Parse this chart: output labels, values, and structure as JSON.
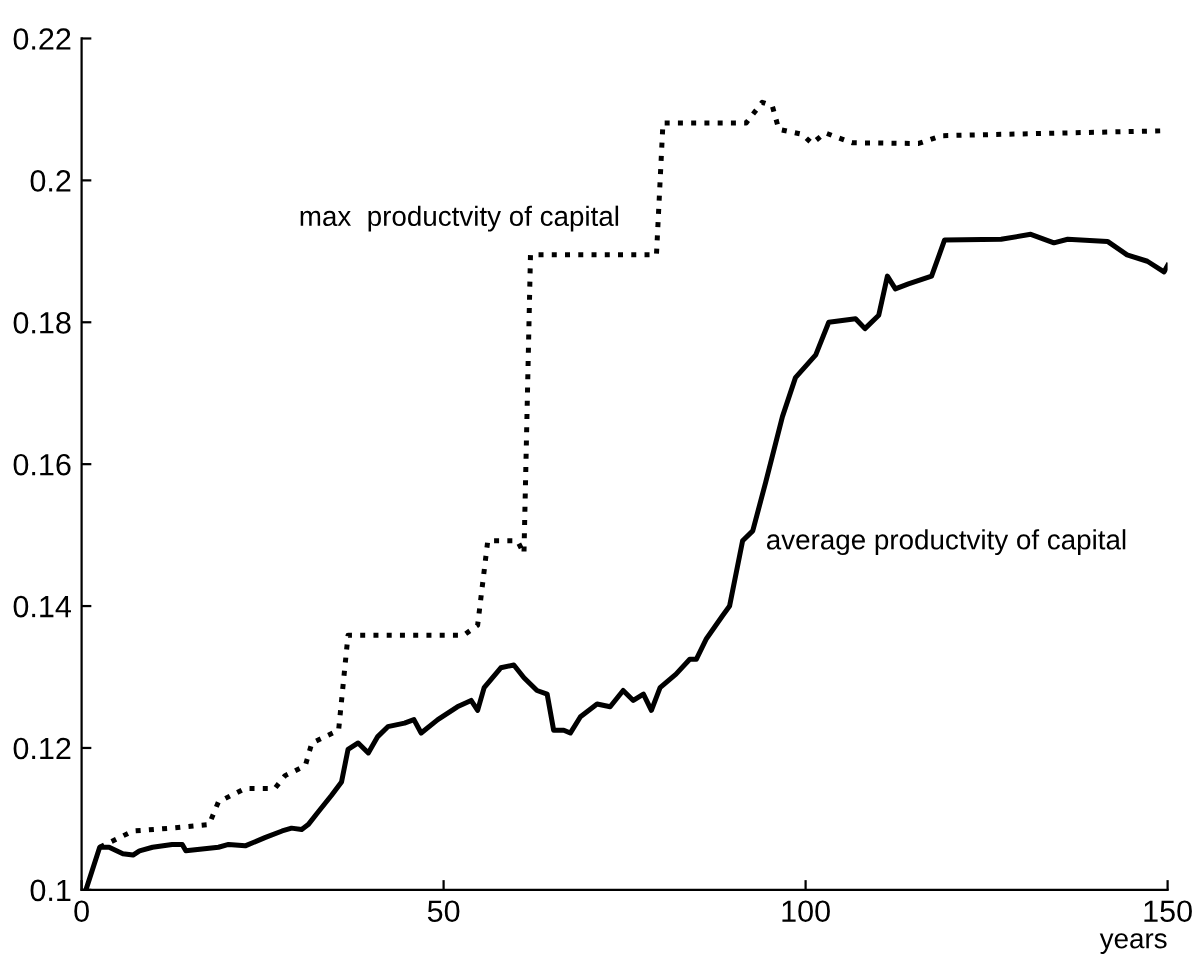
{
  "chart_data": {
    "type": "line",
    "xlabel": "years",
    "xlim": [
      0,
      150
    ],
    "xticks": [
      0,
      50,
      100,
      150
    ],
    "ylim": [
      0.1,
      0.22
    ],
    "yticks": [
      0.1,
      0.12,
      0.14,
      0.16,
      0.18,
      0.2,
      0.22
    ],
    "grid": false,
    "legend": false,
    "marker": "none",
    "annotations": [
      "max  productvity of capital",
      "average productvity of capital"
    ],
    "series": [
      {
        "color": "#000000",
        "line_style": "dotted",
        "x": [
          2.5,
          7.1,
          12.5,
          17.6,
          18.9,
          22.6,
          26.7,
          28.1,
          30.9,
          31.8,
          35.5,
          36.8,
          52.8,
          54.7,
          56.1,
          60.2,
          61.1,
          62,
          79.4,
          80.3,
          91.8,
          94,
          95.4,
          96.3,
          99.5,
          100.9,
          102.7,
          106.4,
          115.6,
          118.8,
          150
        ],
        "values": [
          0.106,
          0.1083,
          0.1087,
          0.1092,
          0.1124,
          0.1143,
          0.1143,
          0.1161,
          0.1175,
          0.1207,
          0.1225,
          0.1359,
          0.1359,
          0.1373,
          0.1492,
          0.1492,
          0.1474,
          0.1895,
          0.1895,
          0.2081,
          0.2081,
          0.211,
          0.2105,
          0.2072,
          0.2065,
          0.2052,
          0.2067,
          0.2053,
          0.2052,
          0.2063,
          0.207
        ]
      },
      {
        "color": "#000000",
        "line_style": "solid",
        "x": [
          0.6,
          2.5,
          3.8,
          5.7,
          7.1,
          8,
          9.8,
          12.5,
          13.9,
          14.4,
          18.9,
          20.3,
          22.6,
          25.4,
          27.7,
          29,
          30.4,
          31.3,
          32.7,
          34.5,
          35.9,
          36.8,
          38.2,
          39.6,
          40.9,
          42.3,
          44.6,
          45.9,
          46.9,
          49.2,
          51.9,
          53.8,
          54.7,
          55.6,
          57.9,
          59.7,
          61.1,
          62.9,
          64.3,
          65.2,
          66.6,
          67.5,
          68.9,
          71.2,
          73,
          74.8,
          76.2,
          77.6,
          78.7,
          79.9,
          82.1,
          84,
          84.9,
          86.3,
          88.5,
          89.5,
          91.3,
          92.7,
          94.5,
          96.8,
          98.6,
          101.4,
          103.2,
          106.9,
          108.2,
          110.1,
          111.3,
          112.4,
          114.2,
          117.4,
          119.2,
          127,
          131.1,
          134.3,
          136.2,
          141.7,
          144.4,
          147.2,
          149.5,
          150
        ],
        "values": [
          0.1,
          0.106,
          0.106,
          0.1051,
          0.1049,
          0.1055,
          0.106,
          0.1064,
          0.1064,
          0.1055,
          0.106,
          0.1064,
          0.1062,
          0.1074,
          0.1083,
          0.1087,
          0.1085,
          0.1092,
          0.111,
          0.1133,
          0.1152,
          0.1198,
          0.1207,
          0.1193,
          0.1216,
          0.123,
          0.1235,
          0.124,
          0.1221,
          0.124,
          0.1258,
          0.1267,
          0.1253,
          0.1285,
          0.1313,
          0.1317,
          0.1299,
          0.1281,
          0.1276,
          0.1225,
          0.1225,
          0.1221,
          0.1244,
          0.1262,
          0.1258,
          0.1281,
          0.1267,
          0.1276,
          0.1253,
          0.1285,
          0.1304,
          0.1325,
          0.1325,
          0.1354,
          0.1386,
          0.14,
          0.1492,
          0.1506,
          0.1575,
          0.1667,
          0.1722,
          0.1754,
          0.18,
          0.1805,
          0.1791,
          0.181,
          0.1865,
          0.1847,
          0.1854,
          0.1865,
          0.1916,
          0.1917,
          0.1924,
          0.1912,
          0.1917,
          0.1914,
          0.1895,
          0.1886,
          0.1871,
          0.188
        ]
      }
    ]
  }
}
